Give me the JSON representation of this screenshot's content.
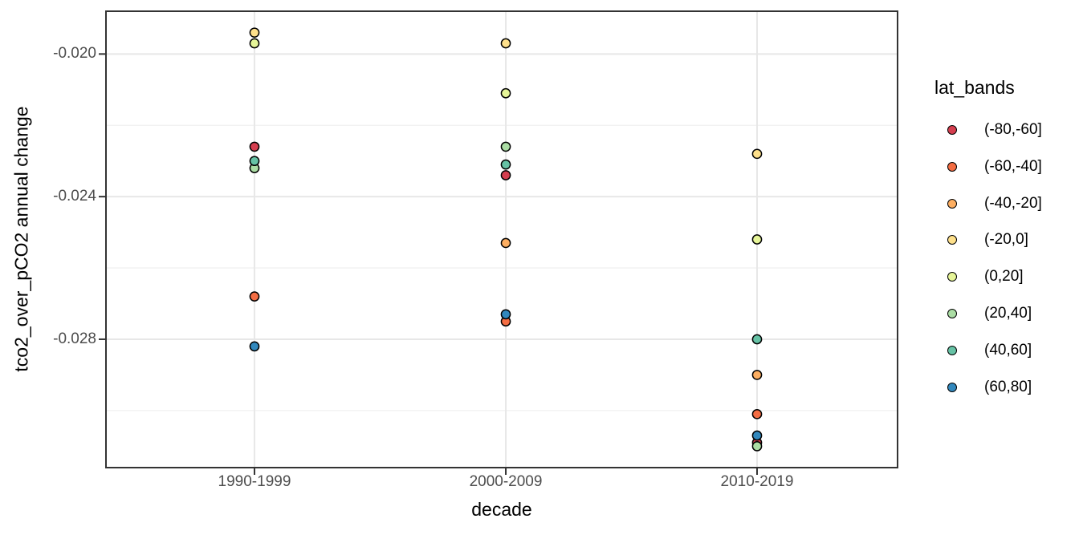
{
  "chart_data": {
    "type": "scatter",
    "title": "",
    "xlabel": "decade",
    "ylabel": "tco2_over_pCO2 annual change",
    "categories": [
      "1990-1999",
      "2000-2009",
      "2010-2019"
    ],
    "y_ticks": [
      -0.02,
      -0.024,
      -0.028
    ],
    "y_tick_labels": [
      "-0.020",
      "-0.024",
      "-0.028"
    ],
    "y_minor_ticks": [
      -0.022,
      -0.026,
      -0.03
    ],
    "ylim": [
      -0.0316,
      -0.0188
    ],
    "grid": "on",
    "legend_position": "right",
    "legend_title": "lat_bands",
    "panel_border_color": "#333333",
    "major_grid_color": "#e7e7e7",
    "minor_grid_color": "#f0f0f0",
    "point_outline_color": "#000000",
    "series": [
      {
        "name": "(-80,-60]",
        "color": "#d53e4f",
        "points": [
          {
            "category": "1990-1999",
            "value": -0.0226
          },
          {
            "category": "2000-2009",
            "value": -0.0234
          },
          {
            "category": "2010-2019",
            "value": -0.0309
          }
        ]
      },
      {
        "name": "(-60,-40]",
        "color": "#f46d43",
        "points": [
          {
            "category": "1990-1999",
            "value": -0.0268
          },
          {
            "category": "2000-2009",
            "value": -0.0275
          },
          {
            "category": "2010-2019",
            "value": -0.0301
          }
        ]
      },
      {
        "name": "(-40,-20]",
        "color": "#fdae61",
        "points": [
          {
            "category": "2000-2009",
            "value": -0.0253
          },
          {
            "category": "2010-2019",
            "value": -0.029
          }
        ]
      },
      {
        "name": "(-20,0]",
        "color": "#fee08b",
        "points": [
          {
            "category": "1990-1999",
            "value": -0.0194
          },
          {
            "category": "2000-2009",
            "value": -0.0197
          },
          {
            "category": "2010-2019",
            "value": -0.0228
          }
        ]
      },
      {
        "name": "(0,20]",
        "color": "#e6f598",
        "points": [
          {
            "category": "1990-1999",
            "value": -0.0197
          },
          {
            "category": "2000-2009",
            "value": -0.0211
          },
          {
            "category": "2010-2019",
            "value": -0.0252
          }
        ]
      },
      {
        "name": "(20,40]",
        "color": "#abdda4",
        "points": [
          {
            "category": "1990-1999",
            "value": -0.0232
          },
          {
            "category": "2000-2009",
            "value": -0.0226
          },
          {
            "category": "2010-2019",
            "value": -0.031
          }
        ]
      },
      {
        "name": "(40,60]",
        "color": "#66c2a5",
        "points": [
          {
            "category": "1990-1999",
            "value": -0.023
          },
          {
            "category": "2000-2009",
            "value": -0.0231
          },
          {
            "category": "2010-2019",
            "value": -0.028
          }
        ]
      },
      {
        "name": "(60,80]",
        "color": "#3288bd",
        "points": [
          {
            "category": "1990-1999",
            "value": -0.0282
          },
          {
            "category": "2000-2009",
            "value": -0.0273
          },
          {
            "category": "2010-2019",
            "value": -0.0307
          }
        ]
      }
    ]
  }
}
